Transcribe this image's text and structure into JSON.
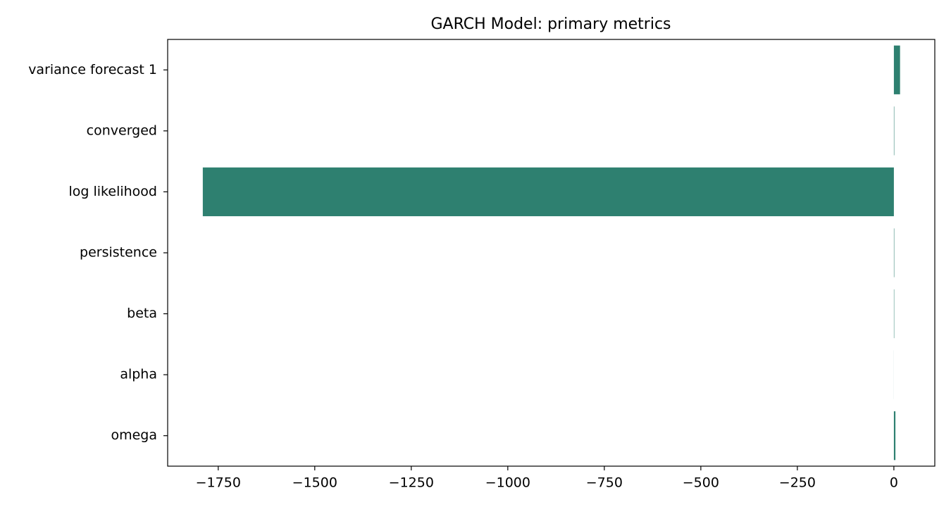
{
  "chart_data": {
    "type": "barh",
    "title": "GARCH Model: primary metrics",
    "categories": [
      "omega",
      "alpha",
      "beta",
      "persistence",
      "log likelihood",
      "converged",
      "variance forecast 1"
    ],
    "values": [
      4,
      0.1,
      0.88,
      0.98,
      -1790,
      1,
      16
    ],
    "color": "#2e8070",
    "xlim": [
      -1881,
      106
    ],
    "xticks": [
      {
        "value": -1750,
        "label": "−1750"
      },
      {
        "value": -1500,
        "label": "−1500"
      },
      {
        "value": -1250,
        "label": "−1250"
      },
      {
        "value": -1000,
        "label": "−1000"
      },
      {
        "value": -750,
        "label": "−750"
      },
      {
        "value": -500,
        "label": "−500"
      },
      {
        "value": -250,
        "label": "−250"
      },
      0
    ],
    "grid": false
  }
}
